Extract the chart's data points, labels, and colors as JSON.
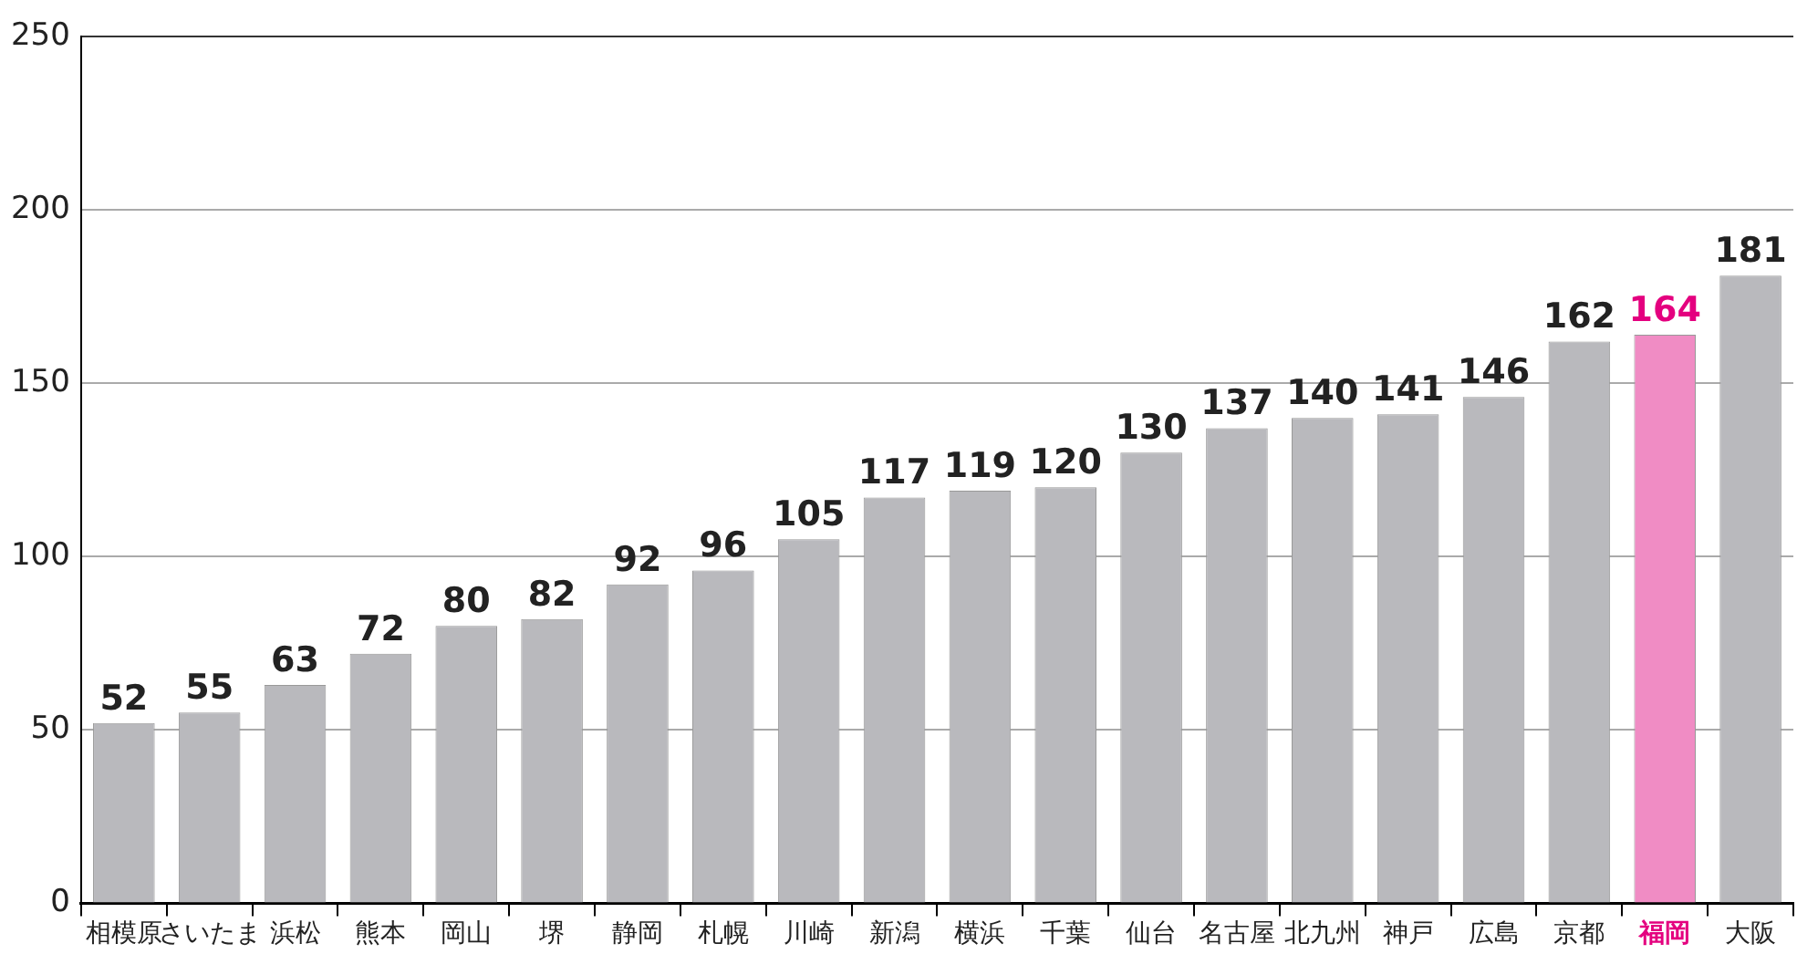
{
  "chart_data": {
    "type": "bar",
    "categories": [
      "相模原",
      "さいたま",
      "浜松",
      "熊本",
      "岡山",
      "堺",
      "静岡",
      "札幌",
      "川崎",
      "新潟",
      "横浜",
      "千葉",
      "仙台",
      "名古屋",
      "北九州",
      "神戸",
      "広島",
      "京都",
      "福岡",
      "大阪"
    ],
    "values": [
      52,
      55,
      63,
      72,
      80,
      82,
      92,
      96,
      105,
      117,
      119,
      120,
      130,
      137,
      140,
      141,
      146,
      162,
      164,
      181
    ],
    "colors": [
      "#b9b9bd",
      "#b9b9bd",
      "#b9b9bd",
      "#b9b9bd",
      "#b9b9bd",
      "#b9b9bd",
      "#b9b9bd",
      "#b9b9bd",
      "#b9b9bd",
      "#b9b9bd",
      "#b9b9bd",
      "#b9b9bd",
      "#b9b9bd",
      "#b9b9bd",
      "#b9b9bd",
      "#b9b9bd",
      "#b9b9bd",
      "#b9b9bd",
      "#f08cc4",
      "#b9b9bd"
    ],
    "ylim": [
      0,
      250
    ],
    "yticks": [
      0,
      50,
      100,
      150,
      200,
      250
    ],
    "grid": "y",
    "legend": false,
    "data_labels": true
  }
}
